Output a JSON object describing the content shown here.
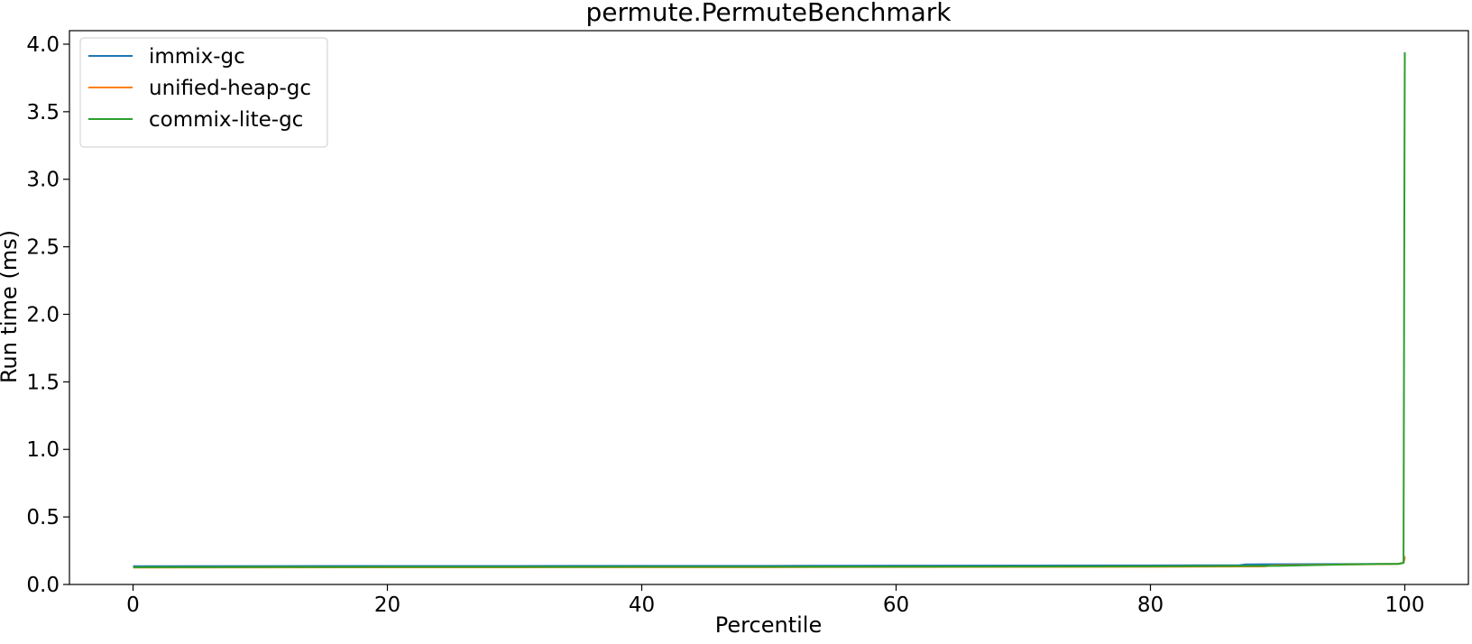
{
  "chart_data": {
    "type": "line",
    "title": "permute.PermuteBenchmark",
    "xlabel": "Percentile",
    "ylabel": "Run time (ms)",
    "xlim": [
      -5,
      105
    ],
    "ylim": [
      0.0,
      4.1
    ],
    "xticks": [
      0,
      20,
      40,
      60,
      80,
      100
    ],
    "yticks": [
      0.0,
      0.5,
      1.0,
      1.5,
      2.0,
      2.5,
      3.0,
      3.5,
      4.0
    ],
    "xtick_labels": [
      "0",
      "20",
      "40",
      "60",
      "80",
      "100"
    ],
    "ytick_labels": [
      "0.0",
      "0.5",
      "1.0",
      "1.5",
      "2.0",
      "2.5",
      "3.0",
      "3.5",
      "4.0"
    ],
    "grid": false,
    "legend": "top-left",
    "series": [
      {
        "name": "immix-gc",
        "color": "#1f77b4",
        "x": [
          0,
          10,
          20,
          30,
          40,
          50,
          60,
          70,
          80,
          87,
          87.5,
          95,
          99.5,
          99.9,
          100
        ],
        "y": [
          0.135,
          0.136,
          0.137,
          0.137,
          0.138,
          0.138,
          0.139,
          0.14,
          0.141,
          0.143,
          0.149,
          0.151,
          0.153,
          0.16,
          0.2
        ]
      },
      {
        "name": "unified-heap-gc",
        "color": "#ff7f0e",
        "x": [
          0,
          10,
          20,
          30,
          40,
          50,
          60,
          70,
          80,
          89,
          89.5,
          95,
          99.5,
          99.9,
          100
        ],
        "y": [
          0.125,
          0.126,
          0.127,
          0.127,
          0.128,
          0.128,
          0.129,
          0.13,
          0.131,
          0.134,
          0.14,
          0.148,
          0.152,
          0.16,
          0.21
        ]
      },
      {
        "name": "commix-lite-gc",
        "color": "#2ca02c",
        "x": [
          0,
          10,
          20,
          30,
          40,
          50,
          60,
          70,
          80,
          90,
          95,
          99.5,
          99.9,
          99.97,
          100
        ],
        "y": [
          0.128,
          0.129,
          0.13,
          0.13,
          0.131,
          0.131,
          0.132,
          0.133,
          0.134,
          0.138,
          0.148,
          0.153,
          0.16,
          3.0,
          3.94
        ]
      }
    ]
  }
}
